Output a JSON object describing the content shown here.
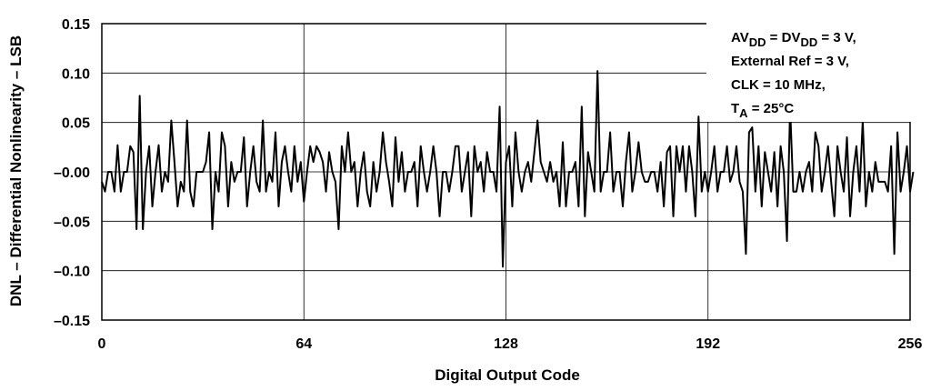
{
  "chart_data": {
    "type": "line",
    "xlabel": "Digital Output Code",
    "ylabel": "DNL – Differential Nonlinearity – LSB",
    "xlim": [
      0,
      256
    ],
    "ylim": [
      -0.15,
      0.15
    ],
    "x_ticks": [
      0,
      64,
      128,
      192,
      256
    ],
    "x_tick_labels": [
      "0",
      "64",
      "128",
      "192",
      "256"
    ],
    "y_ticks": [
      0.15,
      0.1,
      0.05,
      0.0,
      -0.05,
      -0.1,
      -0.15
    ],
    "y_tick_labels": [
      "0.15",
      "0.10",
      "0.05",
      "–0.00",
      "–0.05",
      "–0.10",
      "–0.15"
    ],
    "grid": true,
    "annotation": {
      "line1": {
        "a": "AV",
        "a_sub": "DD",
        "b": " = DV",
        "b_sub": "DD",
        "c": " = 3 V,"
      },
      "line2": "External Ref = 3 V,",
      "line3": "CLK = 10 MHz,",
      "line4": {
        "a": "T",
        "a_sub": "A",
        "b": " = 25°C"
      }
    },
    "series": [
      {
        "x_start": 0,
        "x_step": 1,
        "values": [
          -0.01,
          -0.02,
          0.0,
          0.0,
          -0.02,
          0.027,
          -0.02,
          0.0,
          0.0,
          0.026,
          0.02,
          -0.058,
          0.077,
          -0.058,
          0.0,
          0.026,
          -0.035,
          0.0,
          0.027,
          -0.02,
          0.0,
          -0.01,
          0.052,
          0.01,
          -0.035,
          -0.01,
          -0.02,
          0.052,
          -0.02,
          -0.035,
          0.0,
          0.0,
          0.0,
          0.01,
          0.04,
          -0.058,
          0.0,
          -0.02,
          0.04,
          0.026,
          -0.035,
          0.01,
          -0.01,
          0.0,
          0.0,
          0.035,
          -0.035,
          0.0,
          0.026,
          -0.01,
          -0.02,
          0.052,
          -0.02,
          0.0,
          -0.01,
          0.04,
          -0.035,
          0.01,
          0.026,
          0.0,
          -0.02,
          0.026,
          -0.01,
          0.01,
          -0.03,
          0.0,
          0.026,
          0.01,
          0.026,
          0.02,
          0.01,
          -0.02,
          0.02,
          0.0,
          -0.01,
          -0.058,
          0.026,
          0.0,
          0.04,
          0.0,
          0.01,
          -0.035,
          0.0,
          0.02,
          -0.02,
          -0.035,
          0.01,
          -0.02,
          0.0,
          0.04,
          0.01,
          -0.01,
          -0.035,
          0.035,
          -0.01,
          0.02,
          -0.02,
          0.0,
          0.0,
          0.01,
          -0.035,
          0.026,
          0.0,
          -0.02,
          0.0,
          0.026,
          0.0,
          -0.045,
          0.0,
          0.0,
          -0.02,
          0.0,
          0.026,
          0.026,
          -0.02,
          0.0,
          0.02,
          -0.045,
          0.026,
          0.0,
          0.01,
          -0.02,
          0.02,
          0.0,
          0.0,
          -0.02,
          0.066,
          -0.096,
          0.01,
          0.026,
          -0.035,
          0.04,
          0.0,
          -0.02,
          0.0,
          0.01,
          -0.01,
          0.02,
          0.052,
          0.01,
          0.0,
          -0.01,
          0.01,
          -0.01,
          0.0,
          -0.035,
          0.03,
          -0.035,
          0.0,
          0.0,
          0.01,
          -0.035,
          0.066,
          -0.045,
          0.02,
          0.0,
          -0.02,
          0.102,
          -0.02,
          0.0,
          0.0,
          0.04,
          -0.02,
          0.0,
          0.0,
          -0.035,
          0.01,
          0.04,
          -0.02,
          0.0,
          0.03,
          0.0,
          -0.01,
          -0.01,
          0.0,
          0.0,
          -0.02,
          0.01,
          -0.035,
          0.02,
          0.026,
          -0.045,
          0.026,
          0.0,
          0.026,
          -0.02,
          0.026,
          0.0,
          -0.045,
          0.056,
          -0.02,
          0.0,
          -0.02,
          0.0,
          0.026,
          -0.02,
          0.0,
          0.0,
          0.026,
          -0.01,
          0.0,
          0.026,
          -0.01,
          -0.02,
          -0.083,
          0.04,
          0.045,
          -0.02,
          0.026,
          -0.035,
          0.02,
          0.0,
          -0.02,
          0.02,
          -0.035,
          0.026,
          0.0,
          -0.07,
          0.065,
          -0.02,
          -0.02,
          0.0,
          -0.02,
          0.0,
          0.01,
          -0.02,
          0.04,
          0.026,
          -0.02,
          0.0,
          0.026,
          -0.01,
          -0.045,
          0.026,
          0.0,
          -0.02,
          0.035,
          -0.045,
          0.0,
          0.026,
          -0.02,
          0.052,
          -0.035,
          0.0,
          -0.02,
          0.01,
          -0.01,
          -0.01,
          -0.01,
          -0.02,
          0.026,
          -0.083,
          0.04,
          -0.02,
          0.0,
          0.026,
          -0.02,
          0.0
        ]
      }
    ]
  }
}
